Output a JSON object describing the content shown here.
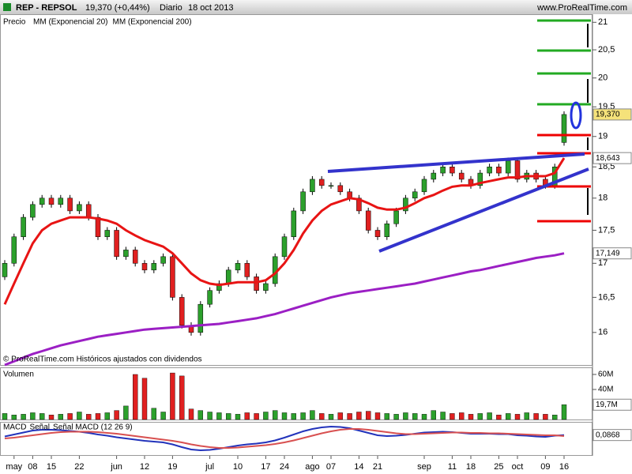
{
  "header": {
    "symbol": "REP - REPSOL",
    "quote": "19,370 (+0,44%)",
    "period": "Diario",
    "date": "18 oct 2013",
    "site": "www.ProRealTime.com"
  },
  "chart_data": [
    {
      "type": "candlestick",
      "legend_title": "Precio",
      "log_scale": true,
      "up_color": "#2ca02c",
      "down_color": "#e02020",
      "note": "© ProRealTime.com  Históricos ajustados con dividendos",
      "last_label": "19,370",
      "last_color": "#f5e27a",
      "categories": [
        null,
        "may",
        null,
        "08",
        null,
        "15",
        null,
        null,
        "22",
        null,
        null,
        null,
        "jun",
        null,
        null,
        "12",
        null,
        null,
        "19",
        null,
        null,
        null,
        "jul",
        null,
        null,
        "10",
        null,
        null,
        "17",
        null,
        "24",
        null,
        null,
        "ago",
        null,
        "07",
        null,
        null,
        "14",
        null,
        "21",
        null,
        null,
        null,
        null,
        "sep",
        null,
        null,
        "11",
        null,
        "18",
        null,
        null,
        "25",
        null,
        "oct",
        null,
        null,
        "09",
        null,
        "16"
      ],
      "open": [
        16.8,
        17.0,
        17.4,
        17.7,
        17.9,
        18.0,
        17.9,
        18.0,
        17.8,
        17.9,
        17.7,
        17.4,
        17.5,
        17.1,
        17.2,
        17.0,
        16.9,
        17.0,
        17.1,
        16.5,
        16.1,
        16.0,
        16.4,
        16.6,
        16.7,
        16.9,
        17.0,
        16.8,
        16.6,
        16.7,
        17.1,
        17.4,
        17.8,
        18.1,
        18.3,
        18.2,
        18.2,
        18.1,
        18.0,
        17.8,
        17.5,
        17.4,
        17.6,
        17.8,
        18.0,
        18.1,
        18.3,
        18.4,
        18.5,
        18.4,
        18.3,
        18.2,
        18.4,
        18.5,
        18.4,
        18.6,
        18.3,
        18.4,
        18.3,
        18.2,
        18.9
      ],
      "close": [
        17.0,
        17.4,
        17.7,
        17.9,
        18.0,
        17.9,
        18.0,
        17.8,
        17.9,
        17.7,
        17.4,
        17.5,
        17.1,
        17.2,
        17.0,
        16.9,
        17.0,
        17.1,
        16.5,
        16.1,
        16.0,
        16.4,
        16.6,
        16.7,
        16.9,
        17.0,
        16.8,
        16.6,
        16.7,
        17.1,
        17.4,
        17.8,
        18.1,
        18.3,
        18.2,
        18.2,
        18.1,
        18.0,
        17.8,
        17.5,
        17.4,
        17.6,
        17.8,
        18.0,
        18.1,
        18.3,
        18.4,
        18.5,
        18.4,
        18.3,
        18.2,
        18.4,
        18.5,
        18.4,
        18.6,
        18.3,
        18.4,
        18.3,
        18.2,
        18.5,
        19.37
      ],
      "ylim": [
        15.55,
        21.15
      ],
      "yticks": [
        16,
        {
          "value": 16.5,
          "label": "16,5"
        },
        17,
        {
          "value": 17.5,
          "label": "17,5"
        },
        18,
        {
          "value": 18.5,
          "label": "18,5"
        },
        19,
        {
          "value": 19.5,
          "label": "19,5"
        },
        20,
        {
          "value": 20.5,
          "label": "20,5"
        },
        21
      ],
      "series": [
        {
          "name": "MM (Exponencial 20)",
          "color": "#e81414",
          "last_label": "18,643",
          "values": [
            16.4,
            16.7,
            17.0,
            17.3,
            17.5,
            17.6,
            17.65,
            17.7,
            17.7,
            17.7,
            17.68,
            17.65,
            17.6,
            17.5,
            17.42,
            17.35,
            17.3,
            17.25,
            17.15,
            17.0,
            16.85,
            16.75,
            16.7,
            16.68,
            16.7,
            16.72,
            16.72,
            16.72,
            16.75,
            16.85,
            17.0,
            17.2,
            17.45,
            17.65,
            17.8,
            17.9,
            17.95,
            18.0,
            17.98,
            17.92,
            17.85,
            17.82,
            17.82,
            17.85,
            17.92,
            18.0,
            18.05,
            18.12,
            18.18,
            18.2,
            18.2,
            18.24,
            18.27,
            18.3,
            18.33,
            18.33,
            18.35,
            18.35,
            18.35,
            18.4,
            18.643
          ]
        },
        {
          "name": "MM (Exponencial 200)",
          "color": "#9b1fc4",
          "last_label": "17,149",
          "values": [
            15.55,
            15.6,
            15.65,
            15.7,
            15.74,
            15.78,
            15.82,
            15.85,
            15.88,
            15.91,
            15.94,
            15.96,
            15.98,
            16.0,
            16.02,
            16.04,
            16.05,
            16.06,
            16.07,
            16.08,
            16.09,
            16.1,
            16.11,
            16.12,
            16.14,
            16.16,
            16.18,
            16.2,
            16.23,
            16.26,
            16.3,
            16.34,
            16.38,
            16.42,
            16.46,
            16.5,
            16.53,
            16.56,
            16.58,
            16.6,
            16.62,
            16.64,
            16.66,
            16.68,
            16.7,
            16.73,
            16.76,
            16.79,
            16.82,
            16.85,
            16.88,
            16.9,
            16.93,
            16.96,
            16.99,
            17.02,
            17.05,
            17.08,
            17.1,
            17.12,
            17.149
          ]
        }
      ]
    },
    {
      "type": "volume",
      "title": "Volumen",
      "last_label": "19,7M",
      "values": [
        8,
        6,
        7,
        9,
        8,
        6,
        7,
        8,
        10,
        7,
        8,
        9,
        12,
        18,
        60,
        55,
        15,
        10,
        62,
        58,
        14,
        12,
        10,
        9,
        8,
        7,
        9,
        8,
        10,
        12,
        9,
        8,
        9,
        12,
        8,
        7,
        9,
        8,
        10,
        11,
        9,
        8,
        7,
        9,
        8,
        7,
        12,
        10,
        8,
        9,
        7,
        8,
        9,
        6,
        8,
        7,
        9,
        8,
        7,
        6,
        19.7
      ],
      "ylim": [
        0,
        68.4
      ],
      "yticks": [
        {
          "value": 40,
          "label": "40M"
        },
        {
          "value": 60,
          "label": "60M"
        }
      ]
    },
    {
      "type": "macd",
      "last_label": "0,0868",
      "ylim": [
        -0.42,
        0.4
      ],
      "series": [
        {
          "name": "MACD",
          "color": "#2233bb",
          "values": [
            0.05,
            0.1,
            0.15,
            0.2,
            0.22,
            0.22,
            0.21,
            0.19,
            0.17,
            0.14,
            0.1,
            0.07,
            0.03,
            0.0,
            -0.03,
            -0.06,
            -0.08,
            -0.1,
            -0.15,
            -0.22,
            -0.28,
            -0.3,
            -0.29,
            -0.26,
            -0.22,
            -0.18,
            -0.15,
            -0.13,
            -0.1,
            -0.05,
            0.02,
            0.1,
            0.18,
            0.24,
            0.28,
            0.3,
            0.29,
            0.26,
            0.2,
            0.14,
            0.08,
            0.06,
            0.07,
            0.09,
            0.12,
            0.15,
            0.16,
            0.17,
            0.16,
            0.14,
            0.12,
            0.12,
            0.12,
            0.11,
            0.11,
            0.08,
            0.07,
            0.05,
            0.04,
            0.07,
            0.0868
          ]
        },
        {
          "name": "Señal",
          "color": "#d85050",
          "values": [
            0.0,
            0.02,
            0.05,
            0.08,
            0.11,
            0.14,
            0.16,
            0.17,
            0.17,
            0.17,
            0.16,
            0.14,
            0.12,
            0.09,
            0.06,
            0.03,
            0.0,
            -0.03,
            -0.06,
            -0.1,
            -0.15,
            -0.19,
            -0.22,
            -0.24,
            -0.24,
            -0.23,
            -0.21,
            -0.19,
            -0.17,
            -0.14,
            -0.1,
            -0.05,
            0.01,
            0.07,
            0.13,
            0.18,
            0.22,
            0.24,
            0.24,
            0.22,
            0.19,
            0.16,
            0.13,
            0.11,
            0.11,
            0.12,
            0.13,
            0.14,
            0.15,
            0.15,
            0.14,
            0.14,
            0.13,
            0.13,
            0.12,
            0.11,
            0.1,
            0.09,
            0.08,
            0.08,
            0.06
          ]
        }
      ],
      "title": "Señal MACD (12 26 9)"
    }
  ]
}
